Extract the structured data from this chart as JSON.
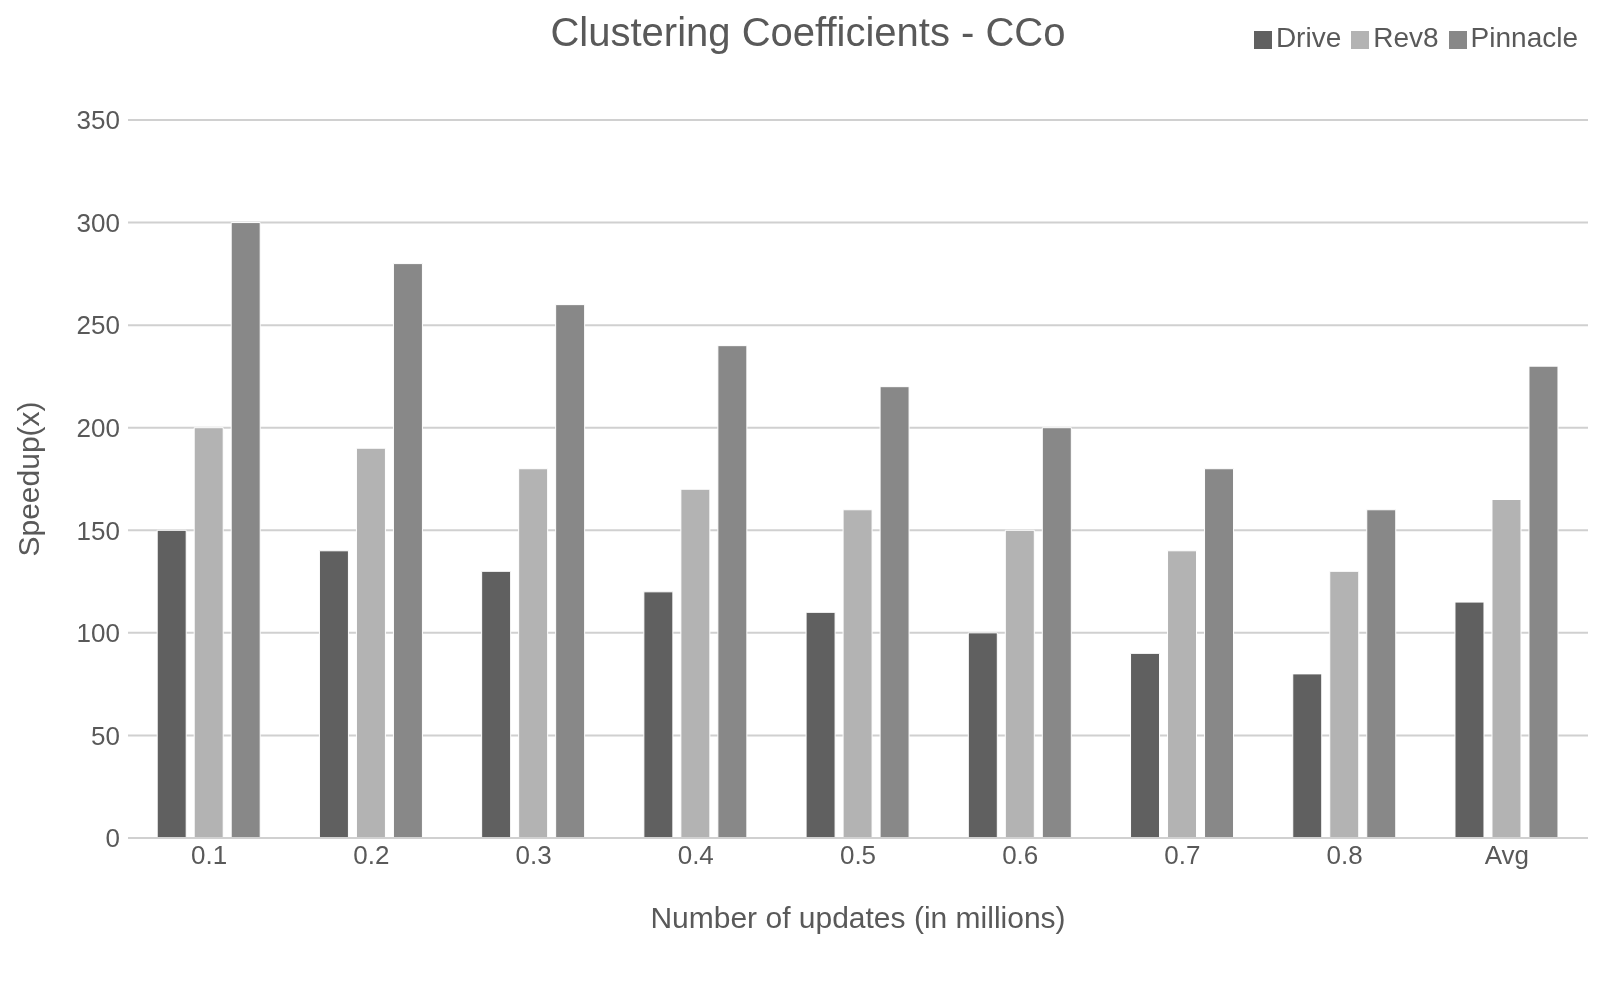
{
  "chart_data": {
    "type": "bar",
    "title": "Clustering Coefficients - CCo",
    "xlabel": "Number of updates (in millions)",
    "ylabel": "Speedup(x)",
    "categories": [
      "0.1",
      "0.2",
      "0.3",
      "0.4",
      "0.5",
      "0.6",
      "0.7",
      "0.8",
      "Avg"
    ],
    "series": [
      {
        "name": "Drive",
        "color": "#606060",
        "values": [
          150,
          140,
          130,
          120,
          110,
          100,
          90,
          80,
          115
        ]
      },
      {
        "name": "Rev8",
        "color": "#b3b3b3",
        "values": [
          200,
          190,
          180,
          170,
          160,
          150,
          140,
          130,
          165
        ]
      },
      {
        "name": "Pinnacle",
        "color": "#888888",
        "values": [
          300,
          280,
          260,
          240,
          220,
          200,
          180,
          160,
          230
        ]
      }
    ],
    "ylim": [
      0,
      350
    ],
    "yticks": [
      0,
      50,
      100,
      150,
      200,
      250,
      300,
      350
    ],
    "grid": "y",
    "legend": "top right"
  }
}
